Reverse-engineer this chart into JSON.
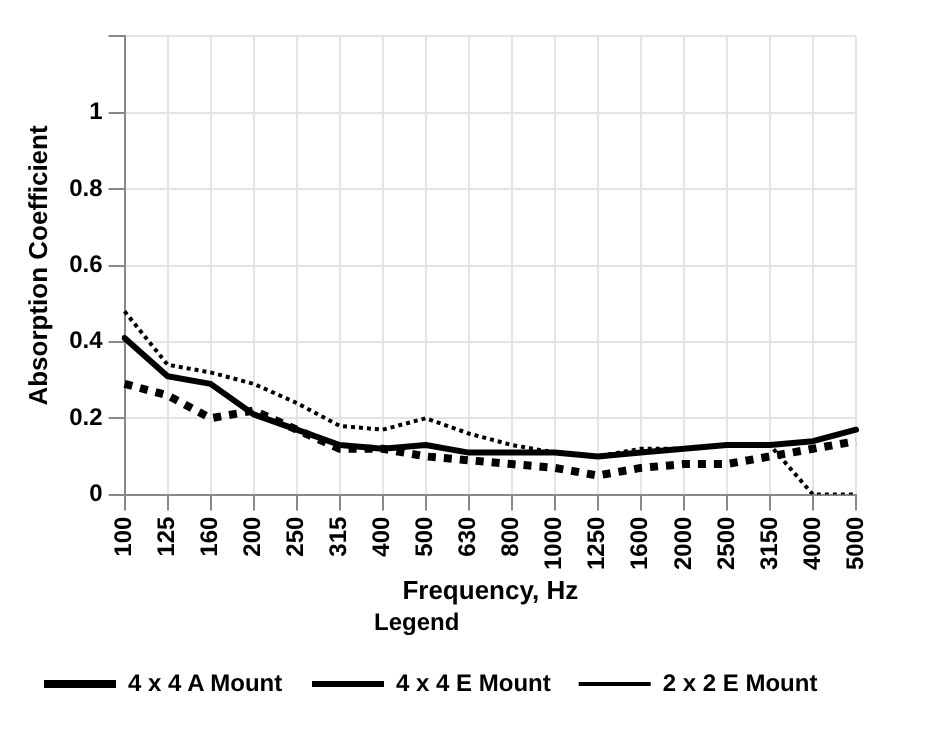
{
  "chart_data": {
    "type": "line",
    "xlabel": "Frequency, Hz",
    "ylabel": "Absorption Coefficient",
    "legend_title": "Legend",
    "legend": "bottom",
    "grid": true,
    "marker": "none",
    "categories": [
      "100",
      "125",
      "160",
      "200",
      "250",
      "315",
      "400",
      "500",
      "630",
      "800",
      "1000",
      "1250",
      "1600",
      "2000",
      "2500",
      "3150",
      "4000",
      "5000"
    ],
    "ylim": [
      0,
      1.2
    ],
    "yticks": [
      0,
      0.2,
      0.4,
      0.6,
      0.8,
      1,
      {
        "value": 1.2,
        "label": null
      }
    ],
    "series": [
      {
        "name": "4 x 4 A Mount",
        "color": "#000000",
        "line_style": "dashed",
        "values": [
          0.29,
          0.26,
          0.2,
          0.22,
          0.17,
          0.12,
          0.12,
          0.1,
          0.09,
          0.08,
          0.07,
          0.05,
          0.07,
          0.08,
          0.08,
          0.1,
          0.12,
          0.14
        ]
      },
      {
        "name": "4 x 4 E Mount",
        "color": "#000000",
        "line_style": "solid",
        "values": [
          0.41,
          0.31,
          0.29,
          0.21,
          0.17,
          0.13,
          0.12,
          0.13,
          0.11,
          0.11,
          0.11,
          0.1,
          0.11,
          0.12,
          0.13,
          0.13,
          0.14,
          0.17
        ]
      },
      {
        "name": "2 x 2 E Mount",
        "color": "#000000",
        "line_style": "dotted",
        "values": [
          0.48,
          0.34,
          0.32,
          0.29,
          0.24,
          0.18,
          0.17,
          0.2,
          0.16,
          0.13,
          0.11,
          0.1,
          0.12,
          0.12,
          0.13,
          0.13,
          0,
          0
        ]
      }
    ]
  }
}
